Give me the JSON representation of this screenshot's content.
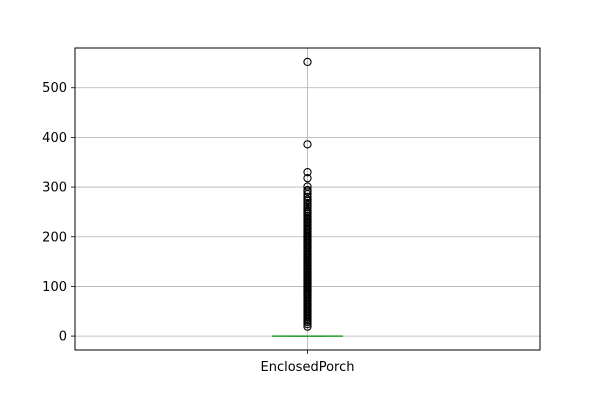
{
  "chart_data": {
    "type": "box",
    "categories": [
      "EnclosedPorch"
    ],
    "yticks": [
      0,
      100,
      200,
      300,
      400,
      500
    ],
    "ylim": [
      -28,
      580
    ],
    "grid": true,
    "box": {
      "q1": 0,
      "median": 0,
      "q3": 0,
      "whisker_low": 0,
      "whisker_high": 0
    },
    "outliers": [
      552,
      386,
      330,
      318,
      301,
      294,
      291,
      286,
      280,
      275,
      272,
      268,
      264,
      260,
      256,
      252,
      249,
      246,
      242,
      239,
      236,
      233,
      230,
      228,
      225,
      222,
      219,
      216,
      214,
      211,
      208,
      205,
      202,
      199,
      196,
      193,
      190,
      187,
      184,
      181,
      178,
      175,
      172,
      169,
      166,
      163,
      160,
      157,
      154,
      151,
      148,
      145,
      142,
      139,
      136,
      133,
      130,
      127,
      124,
      121,
      118,
      115,
      112,
      109,
      106,
      103,
      100,
      97,
      94,
      91,
      88,
      85,
      82,
      79,
      76,
      73,
      70,
      67,
      64,
      61,
      58,
      55,
      52,
      49,
      46,
      43,
      40,
      37,
      34,
      31,
      28,
      24,
      19
    ],
    "colors": {
      "median": "#2ca02c",
      "box": "#1f77b4",
      "grid": "#b0b0b0",
      "outlier": "#000000"
    }
  }
}
